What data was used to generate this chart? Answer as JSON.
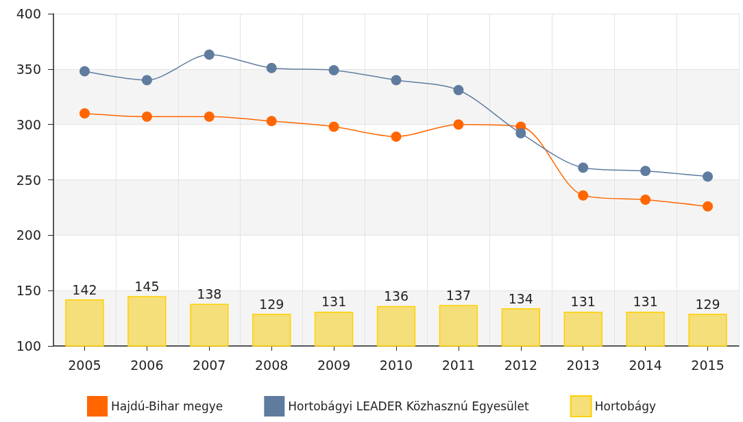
{
  "chart_data": {
    "type": "line",
    "categories": [
      "2005",
      "2006",
      "2007",
      "2008",
      "2009",
      "2010",
      "2011",
      "2012",
      "2013",
      "2014",
      "2015"
    ],
    "series": [
      {
        "name": "Hajdú-Bihar megye",
        "color": "#ff6600",
        "values": [
          310,
          307,
          307,
          303,
          298,
          289,
          300,
          298,
          236,
          232,
          226
        ]
      },
      {
        "name": "Hortobágyi LEADER Közhasznú Egyesület",
        "color": "#5f7c9f",
        "values": [
          348,
          340,
          363,
          351,
          349,
          340,
          331,
          292,
          261,
          258,
          253
        ]
      },
      {
        "name": "Hortobágy",
        "type": "bar",
        "color": "#f5df7a",
        "values": [
          142,
          145,
          138,
          129,
          131,
          136,
          137,
          134,
          131,
          131,
          129
        ],
        "data_labels": true
      }
    ],
    "ylim": [
      100,
      400
    ],
    "yticks": [
      100,
      150,
      200,
      250,
      300,
      350,
      400
    ],
    "grid": true,
    "legend": "bottom",
    "marker": "circle"
  }
}
